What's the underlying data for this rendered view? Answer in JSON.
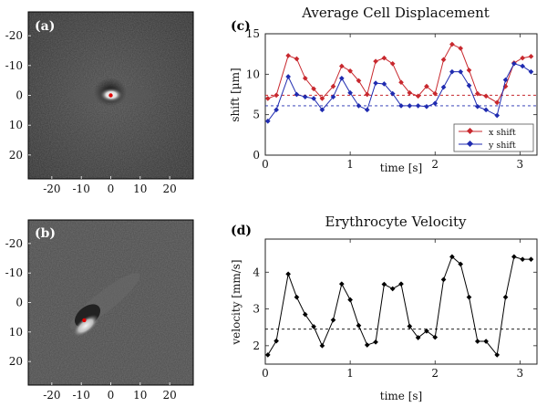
{
  "panels": {
    "a": {
      "label": "(a)"
    },
    "b": {
      "label": "(b)"
    },
    "c": {
      "label": "(c)"
    },
    "d": {
      "label": "(d)"
    }
  },
  "image_axes": {
    "x_ticks": [
      "-20",
      "-10",
      "0",
      "10",
      "20"
    ],
    "y_ticks": [
      "-20",
      "-10",
      "0",
      "10",
      "20"
    ],
    "marker_color": "#e00000",
    "image_a_marker": {
      "x": 0,
      "y": 0
    },
    "image_b_marker": {
      "x": -9,
      "y": 6
    }
  },
  "colors": {
    "x_shift": "#c8282e",
    "y_shift": "#1f2bb0",
    "velocity": "#000000"
  },
  "chart_data": [
    {
      "id": "c",
      "type": "line",
      "title": "Average Cell Displacement",
      "xlabel": "time [s]",
      "ylabel": "shift [µm]",
      "xlim": [
        0,
        3.2
      ],
      "ylim": [
        0,
        15
      ],
      "x_ticks": [
        0,
        1,
        2,
        3
      ],
      "y_ticks": [
        0,
        5,
        10,
        15
      ],
      "legend": "bottom-right",
      "x": [
        0.03,
        0.13,
        0.27,
        0.37,
        0.47,
        0.57,
        0.67,
        0.8,
        0.9,
        1.0,
        1.1,
        1.2,
        1.3,
        1.4,
        1.5,
        1.6,
        1.7,
        1.8,
        1.9,
        2.0,
        2.1,
        2.2,
        2.3,
        2.4,
        2.5,
        2.6,
        2.73,
        2.83,
        2.93,
        3.03,
        3.13
      ],
      "series": [
        {
          "name": "x shift",
          "color": "#c8282e",
          "values": [
            7.0,
            7.4,
            12.3,
            11.9,
            9.5,
            8.2,
            7.0,
            8.5,
            11.0,
            10.4,
            9.2,
            7.5,
            11.6,
            12.0,
            11.3,
            9.0,
            7.7,
            7.3,
            8.5,
            7.6,
            11.8,
            13.7,
            13.2,
            10.5,
            7.6,
            7.3,
            6.5,
            8.5,
            11.4,
            12.0,
            12.2
          ],
          "reference": 7.4
        },
        {
          "name": "y shift",
          "color": "#1f2bb0",
          "values": [
            4.2,
            5.6,
            9.7,
            7.5,
            7.2,
            7.0,
            5.6,
            7.2,
            9.5,
            7.7,
            6.1,
            5.6,
            8.9,
            8.8,
            7.6,
            6.1,
            6.1,
            6.1,
            6.0,
            6.4,
            8.4,
            10.3,
            10.3,
            8.6,
            6.0,
            5.6,
            4.9,
            9.3,
            11.3,
            11.0,
            10.3
          ],
          "reference": 6.1
        }
      ]
    },
    {
      "id": "d",
      "type": "line",
      "title": "Erythrocyte Velocity",
      "xlabel": "time [s]",
      "ylabel": "velocity [mm/s]",
      "xlim": [
        0,
        3.2
      ],
      "ylim": [
        1.5,
        4.9
      ],
      "x_ticks": [
        0,
        1,
        2,
        3
      ],
      "y_ticks": [
        2,
        3,
        4
      ],
      "x": [
        0.03,
        0.13,
        0.27,
        0.37,
        0.47,
        0.57,
        0.67,
        0.8,
        0.9,
        1.0,
        1.1,
        1.2,
        1.3,
        1.4,
        1.5,
        1.6,
        1.7,
        1.8,
        1.9,
        2.0,
        2.1,
        2.2,
        2.3,
        2.4,
        2.5,
        2.6,
        2.73,
        2.83,
        2.93,
        3.03,
        3.13
      ],
      "series": [
        {
          "name": "",
          "color": "#000000",
          "values": [
            1.75,
            2.13,
            3.95,
            3.32,
            2.85,
            2.52,
            2.0,
            2.7,
            3.68,
            3.25,
            2.55,
            2.02,
            2.1,
            3.67,
            3.55,
            3.68,
            2.53,
            2.22,
            2.4,
            2.23,
            3.8,
            4.42,
            4.22,
            3.32,
            2.12,
            2.12,
            1.75,
            3.32,
            4.42,
            4.35,
            4.35
          ],
          "reference": 2.45
        }
      ]
    }
  ]
}
